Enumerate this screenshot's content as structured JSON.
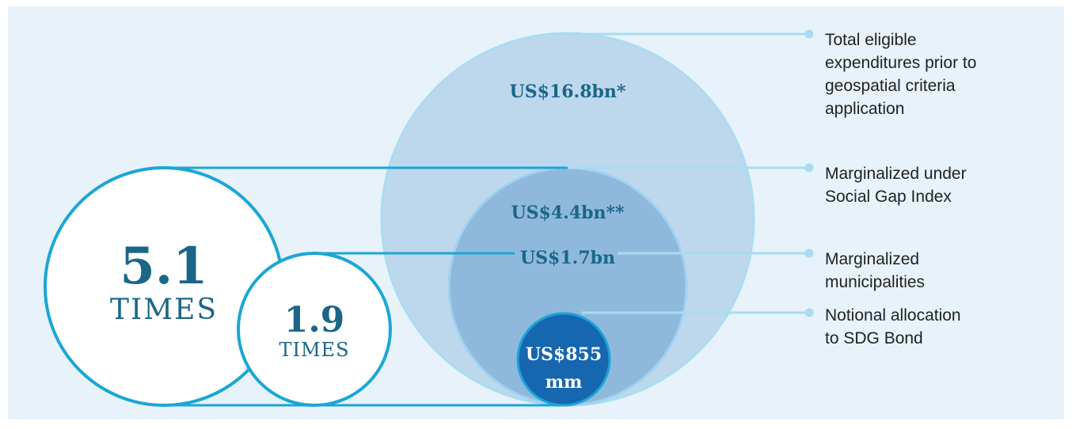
{
  "stats": [
    {
      "value": "5.1",
      "unit": "TIMES"
    },
    {
      "value": "1.9",
      "unit": "TIMES"
    }
  ],
  "amounts": [
    "US$16.8bn*",
    "US$4.4bn**",
    "US$1.7bn",
    [
      "US$855",
      "mm"
    ]
  ],
  "labels": [
    [
      "Total eligible",
      "expenditures prior to",
      "geospatial criteria",
      "application"
    ],
    [
      "Marginalized under",
      "Social Gap Index"
    ],
    [
      "Marginalized",
      "municipalities"
    ],
    [
      "Notional allocation",
      "to SDG Bond"
    ]
  ]
}
